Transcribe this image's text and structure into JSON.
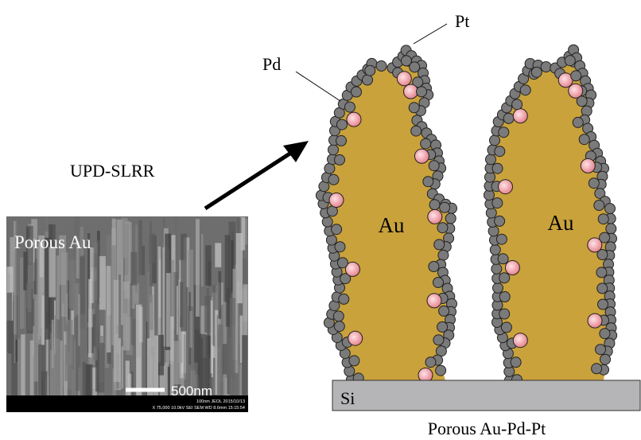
{
  "labels": {
    "pt": "Pt",
    "pd": "Pd",
    "process": "UPD-SLRR",
    "columns": [
      "Au",
      "Au"
    ],
    "substrate": "Si",
    "result": "Porous Au-Pd-Pt"
  },
  "sem": {
    "label": "Porous Au",
    "scale_bar": "500nm",
    "info_top": "100nm JEOL   2015/10/13",
    "info_bottom": "X 75,000    10.0kV SEI        SEM    WD 8.6mm  15:15:54"
  }
}
